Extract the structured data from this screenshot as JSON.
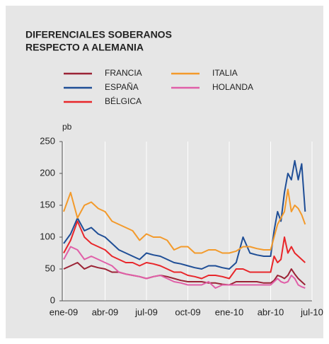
{
  "chart_data": {
    "type": "line",
    "title": [
      "DIFERENCIALES SOBERANOS",
      "RESPECTO A ALEMANIA"
    ],
    "y_label": "pb",
    "x": [
      0,
      0.5,
      1,
      1.5,
      2,
      2.5,
      3,
      3.5,
      4,
      4.5,
      5,
      5.5,
      6,
      6.5,
      7,
      7.5,
      8,
      8.5,
      9,
      9.5,
      10,
      10.5,
      11,
      11.5,
      12,
      12.5,
      13,
      13.5,
      14,
      14.5,
      15,
      15.25,
      15.5,
      15.75,
      16,
      16.25,
      16.5,
      16.75,
      17,
      17.25,
      17.5
    ],
    "series": [
      {
        "name": "FRANCIA",
        "color": "#9b2335",
        "values": [
          50,
          55,
          60,
          50,
          55,
          52,
          50,
          45,
          45,
          42,
          40,
          38,
          35,
          38,
          40,
          38,
          35,
          32,
          30,
          30,
          30,
          28,
          28,
          26,
          25,
          30,
          30,
          30,
          30,
          28,
          28,
          32,
          40,
          38,
          35,
          40,
          50,
          42,
          35,
          30,
          25
        ]
      },
      {
        "name": "ESPAÑA",
        "color": "#1f4e96",
        "values": [
          90,
          105,
          130,
          110,
          115,
          105,
          100,
          90,
          80,
          75,
          70,
          65,
          75,
          72,
          70,
          65,
          60,
          58,
          55,
          52,
          50,
          55,
          55,
          52,
          50,
          60,
          100,
          75,
          72,
          70,
          70,
          110,
          140,
          125,
          170,
          200,
          190,
          220,
          190,
          215,
          140
        ]
      },
      {
        "name": "BÉLGICA",
        "color": "#e8262a",
        "values": [
          75,
          95,
          125,
          100,
          90,
          85,
          80,
          70,
          65,
          60,
          60,
          55,
          60,
          58,
          55,
          50,
          45,
          45,
          40,
          38,
          35,
          40,
          40,
          38,
          35,
          50,
          50,
          45,
          45,
          45,
          45,
          70,
          60,
          65,
          100,
          75,
          85,
          75,
          70,
          65,
          60
        ]
      },
      {
        "name": "ITALIA",
        "color": "#f39a2b",
        "values": [
          140,
          170,
          130,
          150,
          155,
          145,
          140,
          125,
          120,
          115,
          110,
          95,
          105,
          100,
          100,
          95,
          80,
          85,
          85,
          75,
          75,
          80,
          80,
          75,
          75,
          78,
          85,
          85,
          82,
          80,
          80,
          100,
          120,
          130,
          140,
          175,
          140,
          150,
          145,
          135,
          120
        ]
      },
      {
        "name": "HOLANDA",
        "color": "#e05fa8",
        "values": [
          65,
          85,
          80,
          65,
          70,
          65,
          60,
          55,
          45,
          42,
          40,
          38,
          35,
          38,
          40,
          35,
          30,
          28,
          25,
          25,
          25,
          30,
          20,
          25,
          25,
          25,
          25,
          25,
          25,
          25,
          25,
          30,
          35,
          30,
          28,
          30,
          40,
          35,
          25,
          22,
          20
        ]
      }
    ],
    "xlim": [
      0,
      18
    ],
    "xticks": [
      {
        "value": 0,
        "label": "ene-09"
      },
      {
        "value": 3,
        "label": "abr-09"
      },
      {
        "value": 6,
        "label": "jul-09"
      },
      {
        "value": 9,
        "label": "oct-09"
      },
      {
        "value": 12,
        "label": "ene-10"
      },
      {
        "value": 15,
        "label": "abr-10"
      },
      {
        "value": 18,
        "label": "jul-10"
      }
    ],
    "ylim": [
      0,
      250
    ],
    "yticks": [
      0,
      50,
      100,
      150,
      200,
      250
    ],
    "grid": true
  }
}
